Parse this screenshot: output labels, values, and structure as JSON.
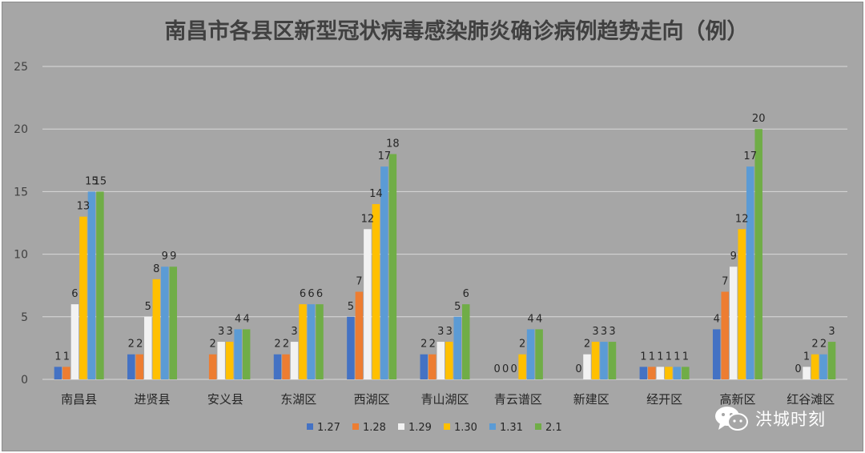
{
  "chart_data": {
    "type": "bar",
    "title": "南昌市各县区新型冠状病毒感染肺炎确诊病例趋势走向（例）",
    "categories": [
      "南昌县",
      "进贤县",
      "安义县",
      "东湖区",
      "西湖区",
      "青山湖区",
      "青云谱区",
      "新建区",
      "经开区",
      "高新区",
      "红谷滩区"
    ],
    "ylim": [
      0,
      25
    ],
    "yticks": [
      0,
      5,
      10,
      15,
      20,
      25
    ],
    "grid": true,
    "legend_position": "bottom",
    "series": [
      {
        "name": "1.27",
        "color": "#4472c4",
        "values": [
          1,
          2,
          null,
          2,
          5,
          2,
          0,
          null,
          1,
          4,
          null
        ]
      },
      {
        "name": "1.28",
        "color": "#ed7d31",
        "values": [
          1,
          2,
          2,
          2,
          7,
          2,
          0,
          0,
          1,
          7,
          0
        ]
      },
      {
        "name": "1.29",
        "color": "#f2f2f2",
        "values": [
          6,
          5,
          3,
          3,
          12,
          3,
          0,
          2,
          1,
          9,
          1
        ]
      },
      {
        "name": "1.30",
        "color": "#ffc000",
        "values": [
          13,
          8,
          3,
          6,
          14,
          3,
          2,
          3,
          1,
          12,
          2
        ]
      },
      {
        "name": "1.31",
        "color": "#5b9bd5",
        "values": [
          15,
          9,
          4,
          6,
          17,
          5,
          4,
          3,
          1,
          17,
          2
        ]
      },
      {
        "name": "2.1",
        "color": "#70ad47",
        "values": [
          15,
          9,
          4,
          6,
          18,
          6,
          4,
          3,
          1,
          20,
          3
        ]
      }
    ]
  },
  "watermark": {
    "text": "洪城时刻",
    "icon": "wechat-icon"
  }
}
